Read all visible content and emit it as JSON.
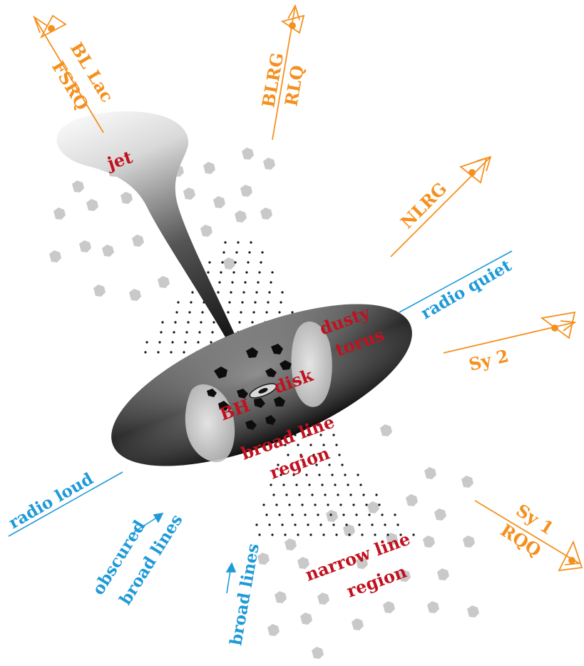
{
  "colors": {
    "red_label": "#c0121f",
    "orange_observer": "#f5901e",
    "blue_axis": "#1f9ad8",
    "cloud_grey": "#c8c8c8",
    "torus_dark": "#222222"
  },
  "components": {
    "jet": "jet",
    "dusty_torus_line1": "dusty",
    "dusty_torus_line2": "torus",
    "black_hole": "BH",
    "disk": "disk",
    "broad_line_region_line1": "broad line",
    "broad_line_region_line2": "region",
    "narrow_line_region_line1": "narrow line",
    "narrow_line_region_line2": "region"
  },
  "observers": {
    "bl_lac": "BL Lac",
    "fsrq": "FSRQ",
    "blrg": "BLRG",
    "rlq": "RLQ",
    "nlrg": "NLRG",
    "sy2": "Sy 2",
    "sy1": "Sy 1",
    "rqq": "RQQ"
  },
  "axis_labels": {
    "radio_loud": "radio loud",
    "radio_quiet": "radio quiet",
    "obscured_line1": "obscured",
    "obscured_line2": "broad lines",
    "broad_lines": "broad lines"
  },
  "icons": [
    "eye-icon",
    "arrow-icon"
  ]
}
